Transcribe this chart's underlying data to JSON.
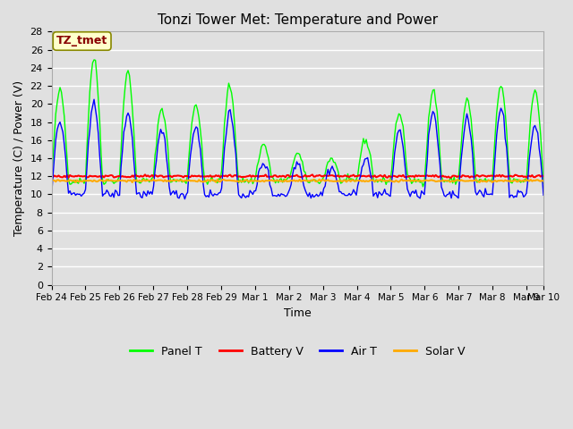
{
  "title": "Tonzi Tower Met: Temperature and Power",
  "xlabel": "Time",
  "ylabel": "Temperature (C) / Power (V)",
  "ylim": [
    0,
    28
  ],
  "yticks": [
    0,
    2,
    4,
    6,
    8,
    10,
    12,
    14,
    16,
    18,
    20,
    22,
    24,
    26,
    28
  ],
  "xtick_positions": [
    0,
    1,
    2,
    3,
    4,
    5,
    6,
    7,
    8,
    9,
    10,
    11,
    12,
    13,
    14,
    14.5
  ],
  "xtick_labels": [
    "Feb 24",
    "Feb 25",
    "Feb 26",
    "Feb 27",
    "Feb 28",
    "Feb 29",
    "Mar 1",
    "Mar 2",
    "Mar 3",
    "Mar 4",
    "Mar 5",
    "Mar 6",
    "Mar 7",
    "Mar 8",
    "Mar 9",
    "Mar 10"
  ],
  "background_color": "#e0e0e0",
  "plot_bg_color": "#e0e0e0",
  "grid_color": "#ffffff",
  "annotation_text": "TZ_tmet",
  "annotation_bg": "#ffffcc",
  "annotation_fg": "#880000",
  "legend_labels": [
    "Panel T",
    "Battery V",
    "Air T",
    "Solar V"
  ],
  "legend_colors": [
    "#00ff00",
    "#ff0000",
    "#0000ff",
    "#ffaa00"
  ],
  "panel_t_color": "#00ff00",
  "battery_v_color": "#ff0000",
  "air_t_color": "#0000ff",
  "solar_v_color": "#ffaa00",
  "n_days": 14.5
}
